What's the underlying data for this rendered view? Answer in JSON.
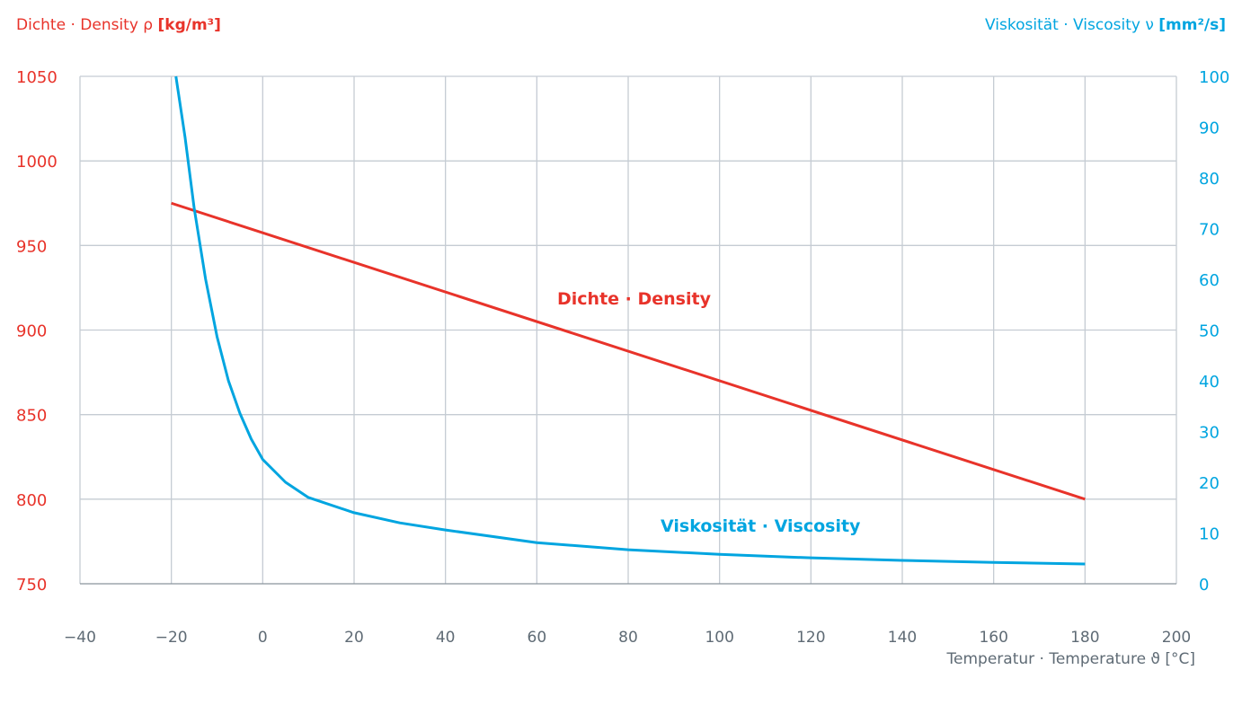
{
  "chart_data": {
    "type": "line",
    "left_axis_title": "Dichte · Density ρ",
    "left_axis_unit": "[kg/m³]",
    "right_axis_title": "Viskosität · Viscosity ν",
    "right_axis_unit": "[mm²/s]",
    "xlabel": "Temperatur · Temperature ϑ [°C]",
    "xlim": [
      -40,
      200
    ],
    "x_ticks": [
      "−40",
      "−20",
      "0",
      "20",
      "40",
      "60",
      "80",
      "100",
      "120",
      "140",
      "160",
      "180",
      "200"
    ],
    "y_left_lim": [
      750,
      1050
    ],
    "y_left_ticks": [
      "750",
      "800",
      "850",
      "900",
      "950",
      "1000",
      "1050"
    ],
    "y_right_lim": [
      0,
      100
    ],
    "y_right_ticks": [
      "0",
      "10",
      "20",
      "30",
      "40",
      "50",
      "60",
      "70",
      "80",
      "90",
      "100"
    ],
    "grid": true,
    "colors": {
      "density": "#e8332a",
      "viscosity": "#00a5e0",
      "grid": "#c5ccd3",
      "axis_text": "#5f6b75"
    },
    "series": [
      {
        "name": "Dichte · Density",
        "axis": "left",
        "x": [
          -20,
          180
        ],
        "y": [
          975,
          800
        ]
      },
      {
        "name": "Viskosität · Viscosity",
        "axis": "right",
        "x": [
          -19,
          -17,
          -15,
          -12.5,
          -10,
          -7.5,
          -5,
          -2.5,
          0,
          5,
          10,
          20,
          30,
          40,
          60,
          80,
          100,
          120,
          140,
          160,
          180
        ],
        "y": [
          100,
          88,
          74,
          60,
          48.7,
          40,
          33.6,
          28.5,
          24.5,
          20,
          17,
          14,
          12,
          10.6,
          8.1,
          6.7,
          5.8,
          5.1,
          4.6,
          4.2,
          3.9
        ]
      }
    ]
  }
}
